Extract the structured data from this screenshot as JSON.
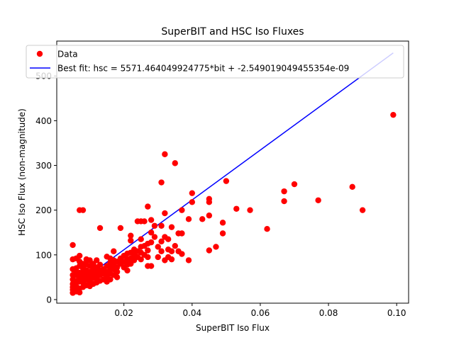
{
  "chart_data": {
    "type": "scatter",
    "title": "SuperBIT and HSC Iso Fluxes",
    "xlabel": "SuperBIT Iso Flux",
    "ylabel": "HSC Iso Flux (non-magnitude)",
    "xlim": [
      0.0003,
      0.1035
    ],
    "ylim": [
      -8,
      578
    ],
    "xticks": [
      0.02,
      0.04,
      0.06,
      0.08,
      0.1
    ],
    "xtick_labels": [
      "0.02",
      "0.04",
      "0.06",
      "0.08",
      "0.10"
    ],
    "yticks": [
      0,
      100,
      200,
      300,
      400,
      500
    ],
    "ytick_labels": [
      "0",
      "100",
      "200",
      "300",
      "400",
      "500"
    ],
    "grid": false,
    "legend_position": "upper-left",
    "colors": {
      "data": "#ff0000",
      "fit": "#0000ff",
      "axes": "#000000",
      "background": "#ffffff"
    },
    "series": [
      {
        "name": "Data",
        "kind": "scatter",
        "points": [
          [
            0.005,
            15
          ],
          [
            0.005,
            22
          ],
          [
            0.005,
            28
          ],
          [
            0.005,
            35
          ],
          [
            0.005,
            45
          ],
          [
            0.005,
            55
          ],
          [
            0.005,
            68
          ],
          [
            0.005,
            90
          ],
          [
            0.005,
            122
          ],
          [
            0.006,
            18
          ],
          [
            0.006,
            30
          ],
          [
            0.006,
            42
          ],
          [
            0.006,
            55
          ],
          [
            0.006,
            62
          ],
          [
            0.006,
            70
          ],
          [
            0.006,
            92
          ],
          [
            0.007,
            16
          ],
          [
            0.007,
            25
          ],
          [
            0.007,
            40
          ],
          [
            0.007,
            50
          ],
          [
            0.007,
            60
          ],
          [
            0.007,
            75
          ],
          [
            0.007,
            85
          ],
          [
            0.007,
            98
          ],
          [
            0.007,
            200
          ],
          [
            0.008,
            28
          ],
          [
            0.008,
            38
          ],
          [
            0.008,
            48
          ],
          [
            0.008,
            58
          ],
          [
            0.008,
            70
          ],
          [
            0.008,
            80
          ],
          [
            0.008,
            200
          ],
          [
            0.009,
            32
          ],
          [
            0.009,
            45
          ],
          [
            0.009,
            55
          ],
          [
            0.009,
            65
          ],
          [
            0.009,
            78
          ],
          [
            0.009,
            90
          ],
          [
            0.01,
            30
          ],
          [
            0.01,
            40
          ],
          [
            0.01,
            52
          ],
          [
            0.01,
            62
          ],
          [
            0.01,
            75
          ],
          [
            0.01,
            88
          ],
          [
            0.011,
            35
          ],
          [
            0.011,
            48
          ],
          [
            0.011,
            58
          ],
          [
            0.011,
            70
          ],
          [
            0.011,
            80
          ],
          [
            0.012,
            38
          ],
          [
            0.012,
            50
          ],
          [
            0.012,
            60
          ],
          [
            0.012,
            72
          ],
          [
            0.012,
            88
          ],
          [
            0.013,
            42
          ],
          [
            0.013,
            55
          ],
          [
            0.013,
            65
          ],
          [
            0.013,
            78
          ],
          [
            0.013,
            160
          ],
          [
            0.014,
            45
          ],
          [
            0.014,
            58
          ],
          [
            0.014,
            68
          ],
          [
            0.015,
            40
          ],
          [
            0.015,
            52
          ],
          [
            0.015,
            62
          ],
          [
            0.015,
            75
          ],
          [
            0.015,
            96
          ],
          [
            0.016,
            45
          ],
          [
            0.016,
            58
          ],
          [
            0.016,
            70
          ],
          [
            0.016,
            82
          ],
          [
            0.016,
            92
          ],
          [
            0.017,
            55
          ],
          [
            0.017,
            68
          ],
          [
            0.017,
            78
          ],
          [
            0.017,
            88
          ],
          [
            0.017,
            108
          ],
          [
            0.018,
            50
          ],
          [
            0.018,
            62
          ],
          [
            0.018,
            72
          ],
          [
            0.018,
            85
          ],
          [
            0.019,
            80
          ],
          [
            0.019,
            92
          ],
          [
            0.019,
            160
          ],
          [
            0.02,
            72
          ],
          [
            0.02,
            85
          ],
          [
            0.02,
            98
          ],
          [
            0.021,
            65
          ],
          [
            0.021,
            78
          ],
          [
            0.021,
            90
          ],
          [
            0.021,
            103
          ],
          [
            0.022,
            80
          ],
          [
            0.022,
            92
          ],
          [
            0.022,
            105
          ],
          [
            0.022,
            132
          ],
          [
            0.022,
            143
          ],
          [
            0.023,
            88
          ],
          [
            0.023,
            100
          ],
          [
            0.023,
            112
          ],
          [
            0.024,
            95
          ],
          [
            0.024,
            108
          ],
          [
            0.024,
            175
          ],
          [
            0.025,
            90
          ],
          [
            0.025,
            105
          ],
          [
            0.025,
            118
          ],
          [
            0.025,
            135
          ],
          [
            0.025,
            175
          ],
          [
            0.026,
            100
          ],
          [
            0.026,
            120
          ],
          [
            0.026,
            175
          ],
          [
            0.027,
            75
          ],
          [
            0.027,
            95
          ],
          [
            0.027,
            110
          ],
          [
            0.027,
            125
          ],
          [
            0.027,
            208
          ],
          [
            0.028,
            75
          ],
          [
            0.028,
            128
          ],
          [
            0.028,
            150
          ],
          [
            0.028,
            178
          ],
          [
            0.029,
            140
          ],
          [
            0.029,
            165
          ],
          [
            0.03,
            95
          ],
          [
            0.03,
            118
          ],
          [
            0.031,
            108
          ],
          [
            0.031,
            130
          ],
          [
            0.031,
            165
          ],
          [
            0.031,
            262
          ],
          [
            0.032,
            88
          ],
          [
            0.032,
            140
          ],
          [
            0.032,
            193
          ],
          [
            0.032,
            325
          ],
          [
            0.033,
            95
          ],
          [
            0.033,
            112
          ],
          [
            0.033,
            135
          ],
          [
            0.034,
            90
          ],
          [
            0.034,
            108
          ],
          [
            0.034,
            162
          ],
          [
            0.035,
            120
          ],
          [
            0.035,
            305
          ],
          [
            0.036,
            108
          ],
          [
            0.036,
            148
          ],
          [
            0.037,
            102
          ],
          [
            0.037,
            148
          ],
          [
            0.037,
            200
          ],
          [
            0.039,
            88
          ],
          [
            0.039,
            180
          ],
          [
            0.04,
            218
          ],
          [
            0.04,
            238
          ],
          [
            0.043,
            180
          ],
          [
            0.045,
            110
          ],
          [
            0.045,
            188
          ],
          [
            0.045,
            218
          ],
          [
            0.045,
            225
          ],
          [
            0.047,
            118
          ],
          [
            0.049,
            148
          ],
          [
            0.049,
            172
          ],
          [
            0.05,
            265
          ],
          [
            0.053,
            203
          ],
          [
            0.057,
            200
          ],
          [
            0.062,
            158
          ],
          [
            0.067,
            220
          ],
          [
            0.067,
            242
          ],
          [
            0.07,
            258
          ],
          [
            0.077,
            222
          ],
          [
            0.087,
            252
          ],
          [
            0.09,
            200
          ],
          [
            0.099,
            413
          ]
        ]
      },
      {
        "name": "Best fit: hsc = 5571.464049924775*bit + -2.549019049455354e-09",
        "kind": "line",
        "slope": 5571.464049924775,
        "intercept": -2.549019049455354e-09,
        "x_range": [
          0.005,
          0.099
        ]
      }
    ]
  }
}
